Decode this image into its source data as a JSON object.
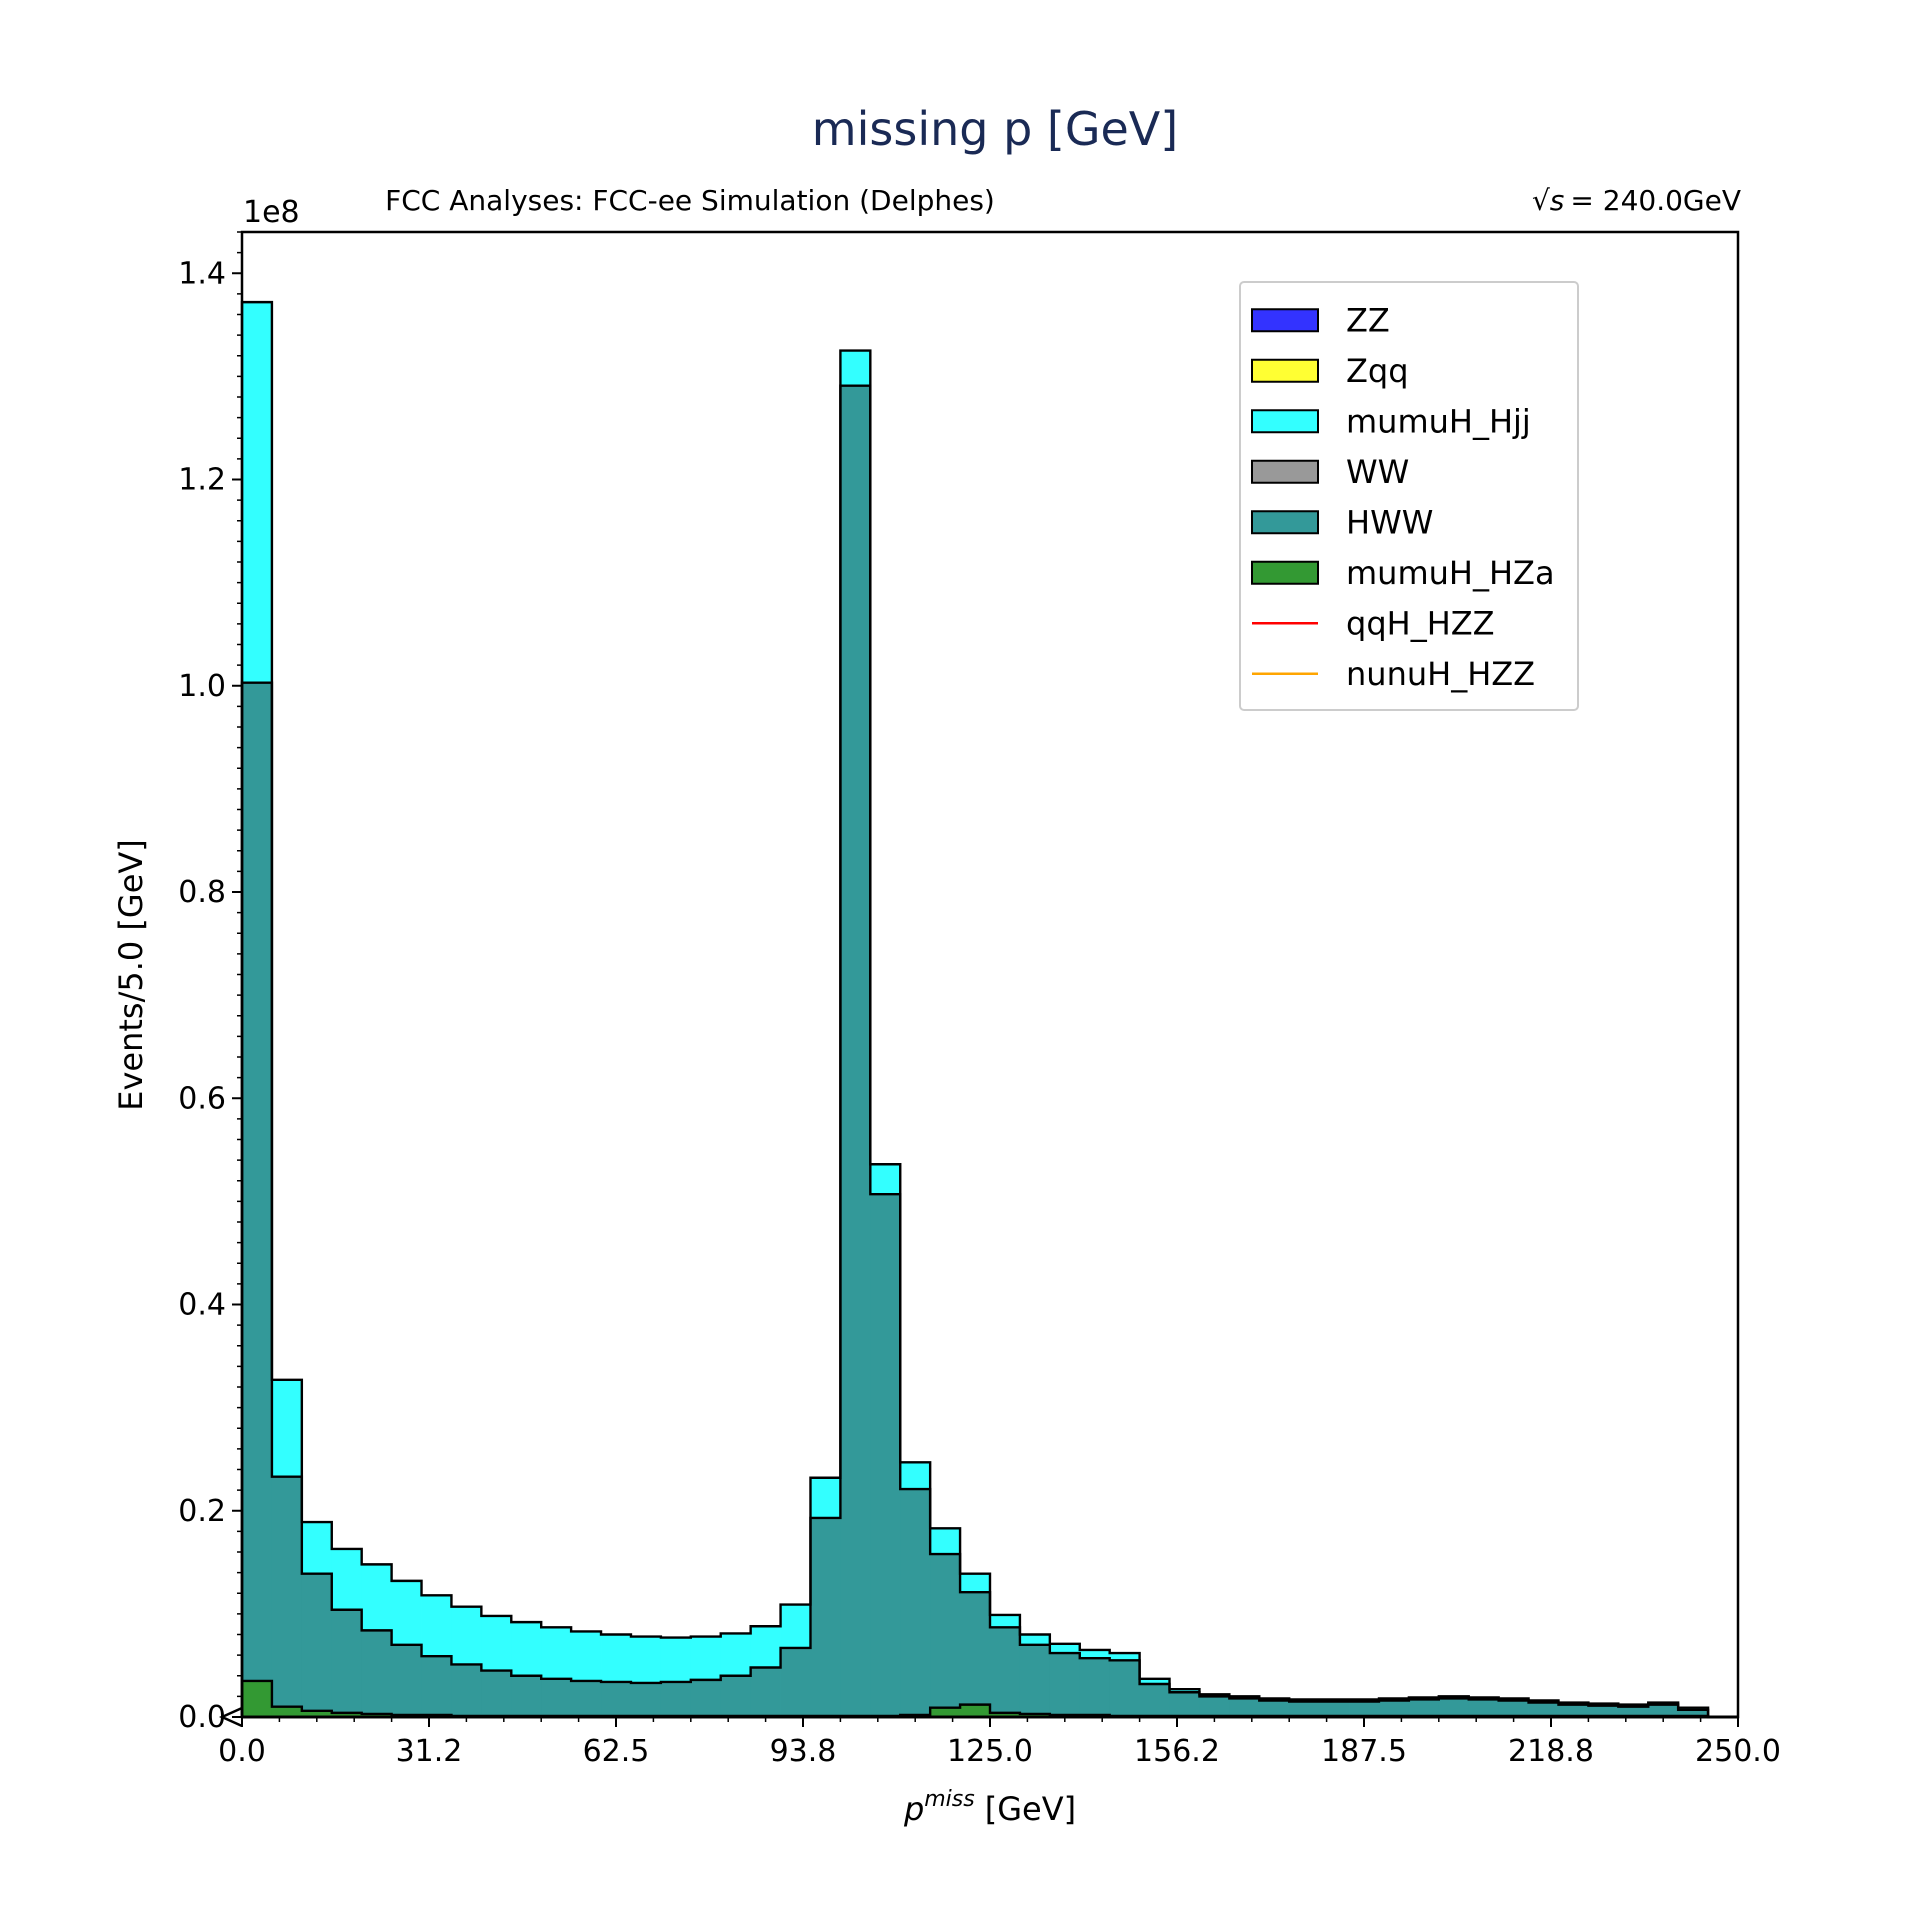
{
  "chart_data": {
    "type": "bar",
    "stacked": true,
    "title": "missing p [GeV]",
    "subtitle_left": "FCC Analyses: FCC-ee Simulation (Delphes)",
    "subtitle_right_sqrt": "√s",
    "subtitle_right_value": "= 240.0GeV",
    "xlabel_main": "p",
    "xlabel_sup": "miss",
    "xlabel_unit": "[GeV]",
    "ylabel": "Events/5.0 [GeV]",
    "y_multiplier": "1e8",
    "xlim": [
      0,
      250
    ],
    "ylim": [
      0,
      1.44
    ],
    "bin_width": 5,
    "x_ticks": [
      0.0,
      31.25,
      62.5,
      93.75,
      125.0,
      156.25,
      187.5,
      218.75,
      250.0
    ],
    "x_tick_labels": [
      "0.0",
      "31.2",
      "62.5",
      "93.8",
      "125.0",
      "156.2",
      "187.5",
      "218.8",
      "250.0"
    ],
    "y_ticks": [
      0.0,
      0.2,
      0.4,
      0.6,
      0.8,
      1.0,
      1.2,
      1.4
    ],
    "y_tick_labels": [
      "0.0",
      "0.2",
      "0.4",
      "0.6",
      "0.8",
      "1.0",
      "1.2",
      "1.4"
    ],
    "legend_position": "top-right",
    "series": [
      {
        "name": "ZZ",
        "kind": "fill",
        "color": "#3333ff",
        "values": [
          0,
          0,
          0,
          0,
          0,
          0,
          0,
          0,
          0,
          0,
          0,
          0,
          0,
          0,
          0,
          0,
          0,
          0,
          0,
          0,
          0,
          0,
          0,
          0,
          0,
          0,
          0,
          0,
          0,
          0,
          0,
          0,
          0,
          0,
          0,
          0,
          0,
          0,
          0,
          0,
          0,
          0,
          0,
          0,
          0,
          0,
          0,
          0,
          0,
          0
        ]
      },
      {
        "name": "Zqq",
        "kind": "fill",
        "color": "#ffff33",
        "values": [
          0,
          0,
          0,
          0,
          0,
          0,
          0,
          0,
          0,
          0,
          0,
          0,
          0,
          0,
          0,
          0,
          0,
          0,
          0,
          0,
          0,
          0,
          0,
          0,
          0,
          0,
          0,
          0,
          0,
          0,
          0,
          0,
          0,
          0,
          0,
          0,
          0,
          0,
          0,
          0,
          0,
          0,
          0,
          0,
          0,
          0,
          0,
          0,
          0,
          0
        ]
      },
      {
        "name": "mumuH_Hjj",
        "kind": "fill",
        "color": "#33ffff",
        "values": [
          1.372,
          0.327,
          0.189,
          0.163,
          0.148,
          0.132,
          0.118,
          0.107,
          0.098,
          0.092,
          0.087,
          0.083,
          0.08,
          0.078,
          0.077,
          0.078,
          0.081,
          0.088,
          0.109,
          0.232,
          1.325,
          0.536,
          0.247,
          0.183,
          0.139,
          0.099,
          0.08,
          0.071,
          0.065,
          0.062,
          0.037,
          0.027,
          0.022,
          0.02,
          0.018,
          0.017,
          0.017,
          0.017,
          0.018,
          0.019,
          0.02,
          0.019,
          0.018,
          0.016,
          0.014,
          0.013,
          0.012,
          0.014,
          0.009,
          0.0
        ]
      },
      {
        "name": "WW",
        "kind": "fill",
        "color": "#999999",
        "values": [
          0,
          0,
          0,
          0,
          0,
          0,
          0,
          0,
          0,
          0,
          0,
          0,
          0,
          0,
          0,
          0,
          0,
          0,
          0,
          0,
          0,
          0,
          0,
          0,
          0,
          0,
          0,
          0,
          0,
          0,
          0,
          0,
          0,
          0,
          0,
          0,
          0,
          0,
          0,
          0,
          0,
          0,
          0,
          0,
          0,
          0,
          0,
          0,
          0,
          0
        ]
      },
      {
        "name": "HWW",
        "kind": "fill",
        "color": "#339999",
        "values": [
          1.003,
          0.233,
          0.139,
          0.104,
          0.084,
          0.07,
          0.059,
          0.051,
          0.045,
          0.04,
          0.037,
          0.035,
          0.034,
          0.033,
          0.034,
          0.036,
          0.04,
          0.048,
          0.067,
          0.193,
          1.291,
          0.507,
          0.221,
          0.158,
          0.121,
          0.087,
          0.07,
          0.062,
          0.057,
          0.055,
          0.032,
          0.024,
          0.02,
          0.018,
          0.016,
          0.015,
          0.015,
          0.015,
          0.016,
          0.017,
          0.018,
          0.017,
          0.016,
          0.014,
          0.012,
          0.011,
          0.01,
          0.012,
          0.007,
          0.0
        ]
      },
      {
        "name": "mumuH_HZa",
        "kind": "fill",
        "color": "#339933",
        "values": [
          0.035,
          0.01,
          0.006,
          0.004,
          0.003,
          0.002,
          0.002,
          0.001,
          0.001,
          0.001,
          0.001,
          0.001,
          0.001,
          0.001,
          0.001,
          0.001,
          0.001,
          0.001,
          0.001,
          0.001,
          0.001,
          0.001,
          0.002,
          0.009,
          0.012,
          0.004,
          0.003,
          0.002,
          0.002,
          0.001,
          0.001,
          0.001,
          0.001,
          0.001,
          0.001,
          0.001,
          0.001,
          0.001,
          0.001,
          0.001,
          0.001,
          0.001,
          0.001,
          0.001,
          0.001,
          0.001,
          0.001,
          0.001,
          0.001,
          0.0
        ]
      },
      {
        "name": "qqH_HZZ",
        "kind": "line",
        "color": "#ff0000",
        "values": []
      },
      {
        "name": "nunuH_HZZ",
        "kind": "line",
        "color": "#ffa500",
        "values": []
      }
    ]
  }
}
